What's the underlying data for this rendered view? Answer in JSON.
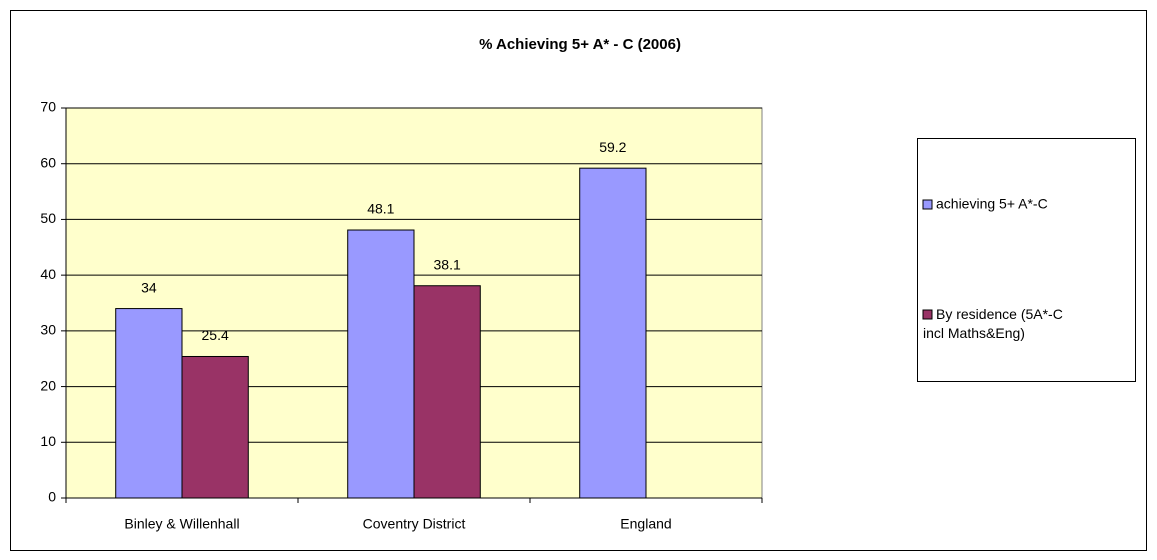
{
  "chart_data": {
    "type": "bar",
    "title": "% Achieving 5+ A* - C (2006)",
    "categories": [
      "Binley & Willenhall",
      "Coventry District",
      "England"
    ],
    "series": [
      {
        "name": "achieving 5+ A*-C",
        "color": "#9999ff",
        "values": [
          34,
          48.1,
          59.2
        ]
      },
      {
        "name": "By residence (5A*-C incl Maths&Eng)",
        "color": "#993366",
        "values": [
          25.4,
          38.1,
          null
        ]
      }
    ],
    "ylim": [
      0,
      70
    ],
    "yticks": [
      0,
      10,
      20,
      30,
      40,
      50,
      60,
      70
    ],
    "grid": true,
    "legend": "right"
  }
}
